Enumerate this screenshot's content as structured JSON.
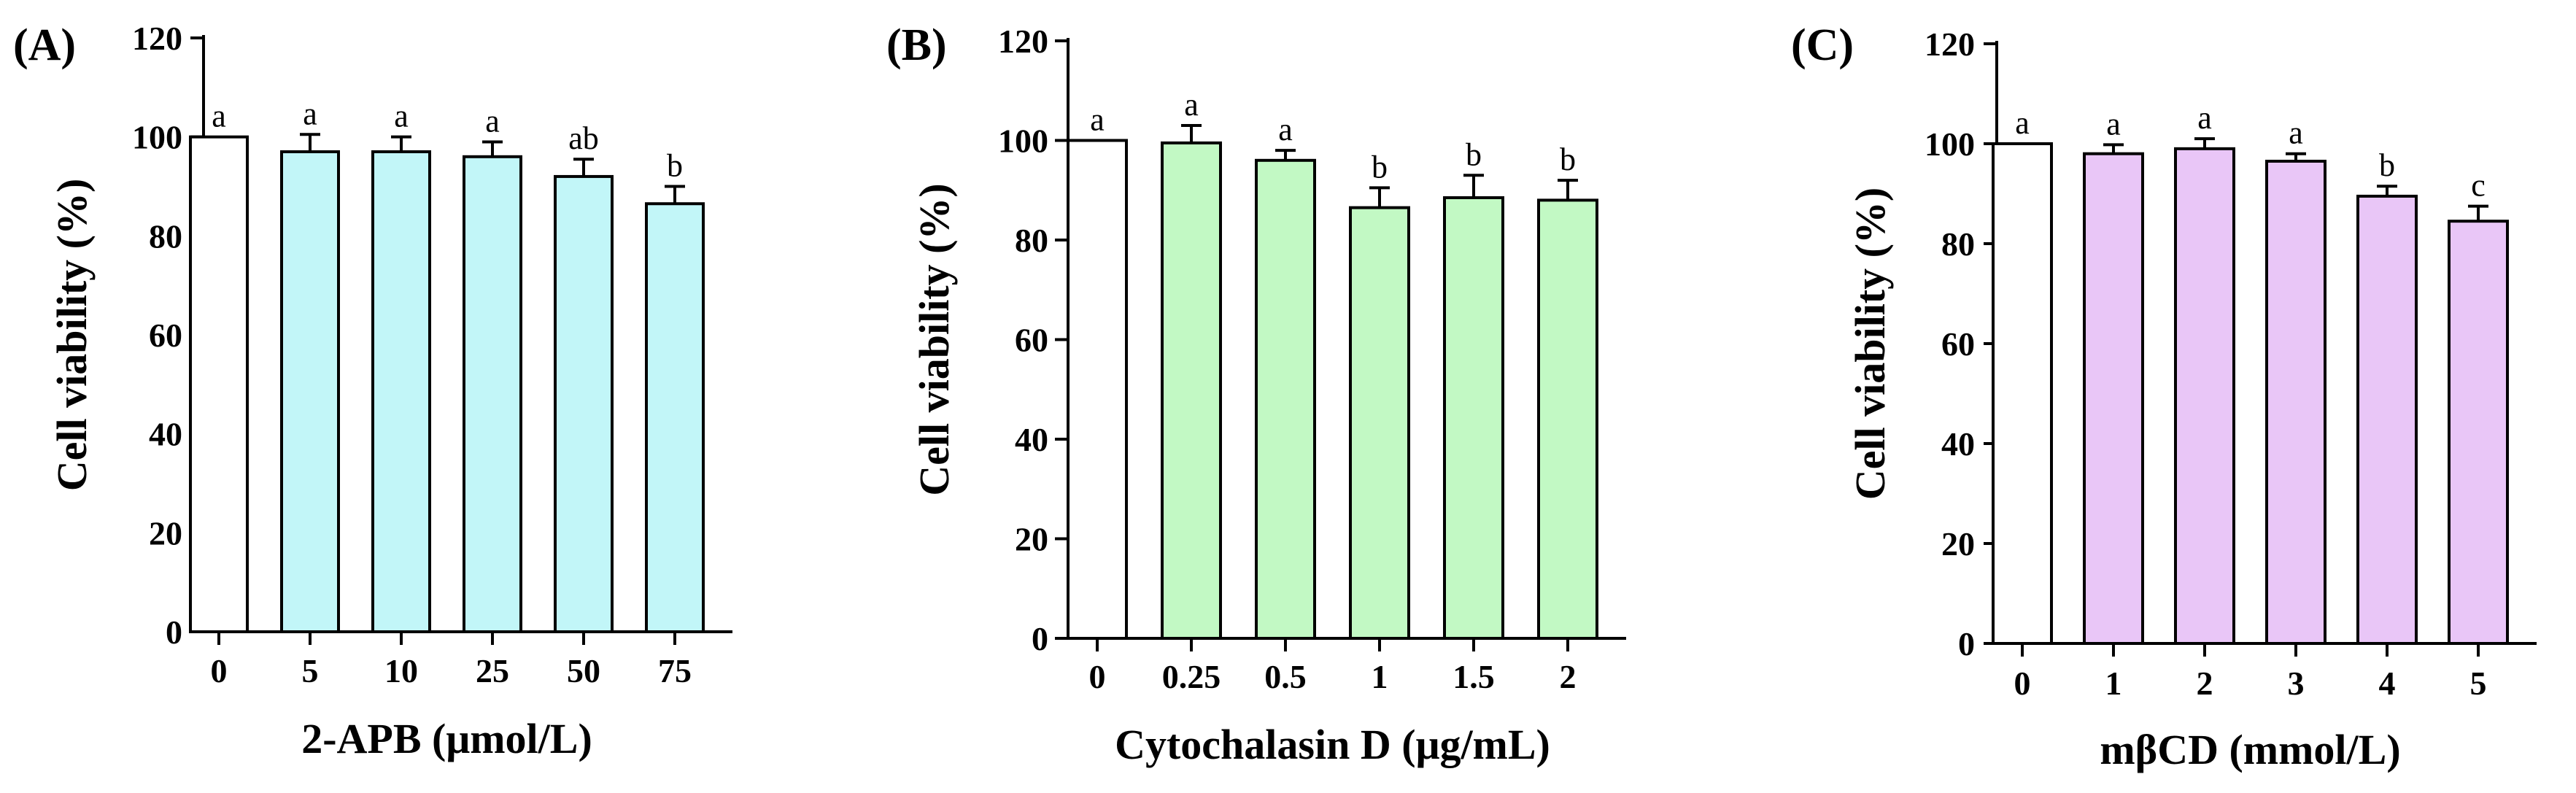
{
  "chart_data": [
    {
      "type": "bar",
      "panel_label": "(A)",
      "xlabel": "2-APB (μmol/L)",
      "ylabel": "Cell viability (%)",
      "categories": [
        "0",
        "5",
        "10",
        "25",
        "50",
        "75"
      ],
      "values": [
        100,
        97,
        97,
        96,
        92,
        86.5
      ],
      "errors": [
        0,
        3.5,
        3,
        3,
        3.5,
        3.5
      ],
      "significance": [
        "a",
        "a",
        "a",
        "a",
        "ab",
        "b"
      ],
      "ylim": [
        0,
        120
      ],
      "yticks": [
        "0",
        "20",
        "40",
        "60",
        "80",
        "100",
        "120"
      ],
      "bar_colors": [
        "#ffffff",
        "#c2f6f8",
        "#c2f6f8",
        "#c2f6f8",
        "#c2f6f8",
        "#c2f6f8"
      ],
      "grid": false
    },
    {
      "type": "bar",
      "panel_label": "(B)",
      "xlabel": "Cytochalasin D (μg/mL)",
      "ylabel": "Cell viability (%)",
      "categories": [
        "0",
        "0.25",
        "0.5",
        "1",
        "1.5",
        "2"
      ],
      "values": [
        100,
        99.5,
        96,
        86.5,
        88.5,
        88
      ],
      "errors": [
        0,
        3.5,
        2,
        4,
        4.5,
        4
      ],
      "significance": [
        "a",
        "a",
        "a",
        "b",
        "b",
        "b"
      ],
      "ylim": [
        0,
        120
      ],
      "yticks": [
        "0",
        "20",
        "40",
        "60",
        "80",
        "100",
        "120"
      ],
      "bar_colors": [
        "#ffffff",
        "#c2f9c4",
        "#c2f9c4",
        "#c2f9c4",
        "#c2f9c4",
        "#c2f9c4"
      ],
      "grid": false
    },
    {
      "type": "bar",
      "panel_label": "(C)",
      "xlabel": "mβCD (mmol/L)",
      "ylabel": "Cell viability (%)",
      "categories": [
        "0",
        "1",
        "2",
        "3",
        "4",
        "5"
      ],
      "values": [
        100,
        98,
        99,
        96.5,
        89.5,
        84.5
      ],
      "errors": [
        0,
        1.8,
        2,
        1.5,
        2,
        3
      ],
      "significance": [
        "a",
        "a",
        "a",
        "a",
        "b",
        "c"
      ],
      "ylim": [
        0,
        120
      ],
      "yticks": [
        "0",
        "20",
        "40",
        "60",
        "80",
        "100",
        "120"
      ],
      "bar_colors": [
        "#ffffff",
        "#e9c6f7",
        "#e9c6f7",
        "#e9c6f7",
        "#e9c6f7",
        "#e9c6f7"
      ],
      "grid": false
    }
  ]
}
